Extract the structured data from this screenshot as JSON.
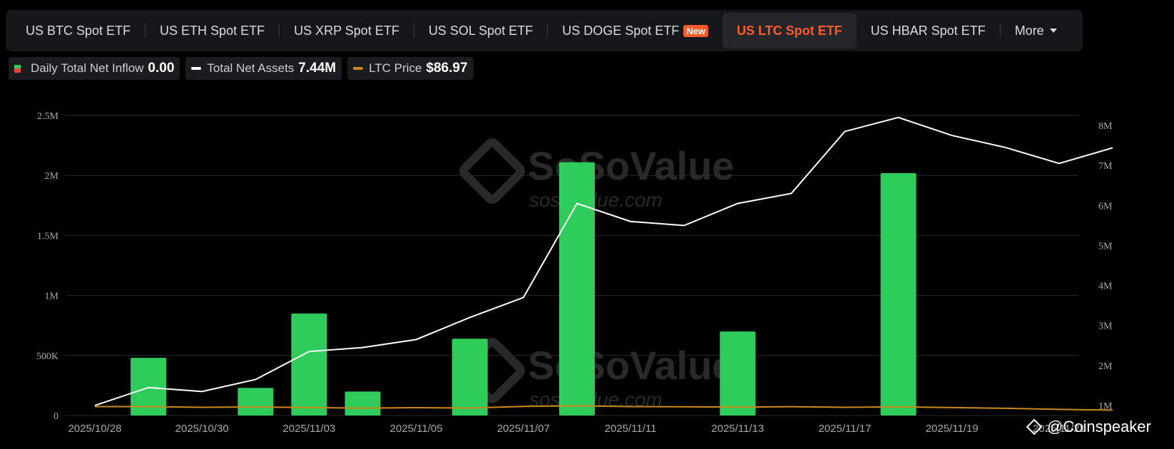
{
  "tabs": [
    {
      "label": "US BTC Spot ETF",
      "name": "tab-us-btc-spot-etf"
    },
    {
      "label": "US ETH Spot ETF",
      "name": "tab-us-eth-spot-etf"
    },
    {
      "label": "US XRP Spot ETF",
      "name": "tab-us-xrp-spot-etf"
    },
    {
      "label": "US SOL Spot ETF",
      "name": "tab-us-sol-spot-etf"
    },
    {
      "label": "US DOGE Spot ETF",
      "name": "tab-us-doge-spot-etf",
      "badge": "New"
    },
    {
      "label": "US LTC Spot ETF",
      "name": "tab-us-ltc-spot-etf",
      "active": true
    },
    {
      "label": "US HBAR Spot ETF",
      "name": "tab-us-hbar-spot-etf"
    },
    {
      "label": "More",
      "name": "tab-more",
      "dropdown": true
    }
  ],
  "legend": {
    "inflow": {
      "label": "Daily Total Net Inflow",
      "value": "0.00"
    },
    "assets": {
      "label": "Total Net Assets",
      "value": "7.44M"
    },
    "price": {
      "label": "LTC Price",
      "value": "$86.97"
    }
  },
  "colors": {
    "inflow_bar": "#2ecc5b",
    "outflow_bar": "#e8453c",
    "assets_line": "#ffffff",
    "price_line": "#c98a1a",
    "active_tab": "#ff5a2a"
  },
  "watermark": {
    "brand": "SoSoValue",
    "domain": "sosovalue.com"
  },
  "credit": "@Coinspeaker",
  "chart_data": {
    "type": "bar",
    "x_tick_labels": [
      "2025/10/28",
      "2025/10/30",
      "2025/11/03",
      "2025/11/05",
      "2025/11/07",
      "2025/11/11",
      "2025/11/13",
      "2025/11/17",
      "2025/11/19",
      "2025/11/21"
    ],
    "y_left": {
      "ylim": [
        0,
        2500000
      ],
      "ticks": [
        "0",
        "500K",
        "1M",
        "1.5M",
        "2M",
        "2.5M"
      ]
    },
    "y_right": {
      "ylim": [
        750000,
        8250000
      ],
      "ticks": [
        "1M",
        "2M",
        "3M",
        "4M",
        "5M",
        "6M",
        "7M",
        "8M"
      ]
    },
    "grid": true,
    "series": [
      {
        "name": "Daily Total Net Inflow",
        "type": "bar",
        "axis": "left",
        "values": [
          0,
          480000,
          0,
          230000,
          850000,
          200000,
          0,
          640000,
          0,
          2110000,
          0,
          0,
          700000,
          0,
          0,
          2020000,
          0,
          0,
          0,
          0
        ]
      },
      {
        "name": "Total Net Assets",
        "type": "line",
        "axis": "right",
        "values": [
          1000000,
          1450000,
          1350000,
          1650000,
          2350000,
          2450000,
          2650000,
          3200000,
          3700000,
          6050000,
          5600000,
          5500000,
          6050000,
          6300000,
          7850000,
          8200000,
          7750000,
          7450000,
          7050000,
          7440000
        ]
      },
      {
        "name": "LTC Price",
        "type": "line",
        "axis": "hidden",
        "values": [
          100.5,
          100.6,
          97.8,
          99.2,
          96.6,
          94.5,
          96.2,
          95.1,
          101.3,
          103.5,
          100.4,
          99.9,
          98.5,
          100.1,
          97.8,
          99.5,
          96.8,
          94.0,
          89.9,
          86.97
        ]
      }
    ]
  }
}
